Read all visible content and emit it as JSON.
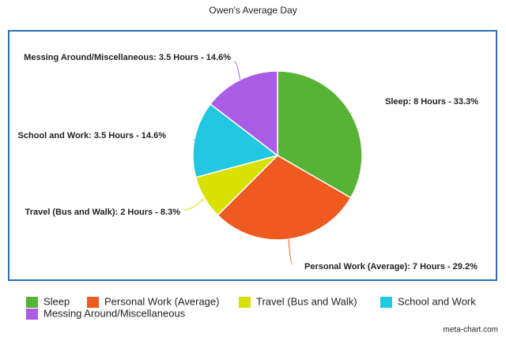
{
  "chart_data": {
    "type": "pie",
    "title": "Owen's Average Day",
    "categories": [
      "Sleep",
      "Personal Work (Average)",
      "Travel (Bus and Walk)",
      "School and Work",
      "Messing Around/Miscellaneous"
    ],
    "values": [
      8,
      7,
      2,
      3.5,
      3.5
    ],
    "value_labels": [
      "Sleep: 8 Hours - 33.3%",
      "Personal Work (Average): 7 Hours - 29.2%",
      "Travel (Bus and Walk): 2 Hours - 8.3%",
      "School and Work: 3.5 Hours - 14.6%",
      "Messing Around/Miscellaneous: 3.5 Hours - 14.6%"
    ],
    "colors": [
      "#56b336",
      "#ef5a21",
      "#d9e100",
      "#22c7e0",
      "#a95de6"
    ],
    "credit": "meta-chart.com"
  }
}
